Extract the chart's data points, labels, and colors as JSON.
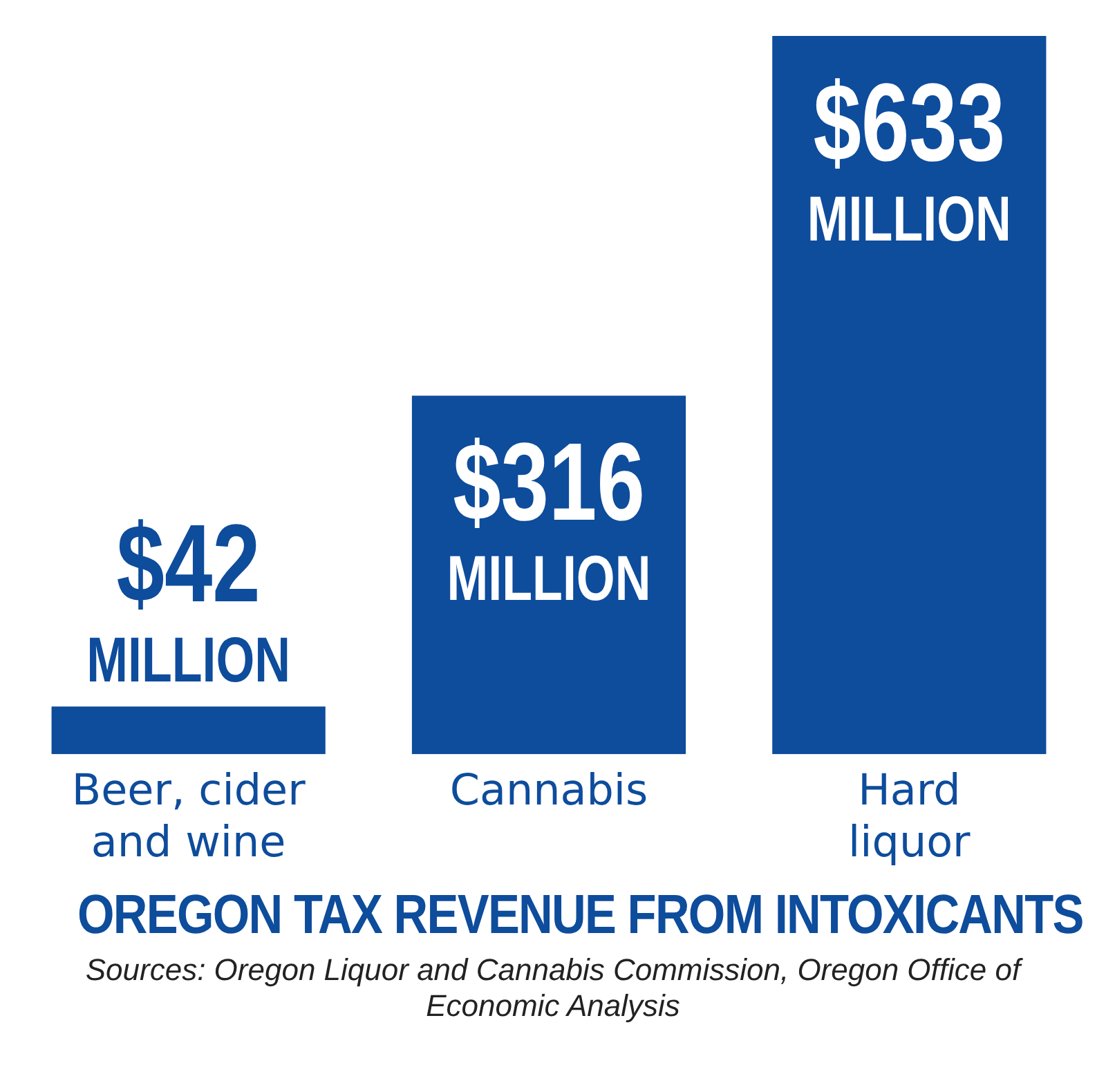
{
  "chart_data": {
    "type": "bar",
    "title": "OREGON TAX REVENUE FROM INTOXICANTS",
    "categories": [
      "Beer, cider and wine",
      "Cannabis",
      "Hard liquor"
    ],
    "values": [
      42,
      316,
      633
    ],
    "value_labels": [
      "$42 MILLION",
      "$316 MILLION",
      "$633 MILLION"
    ],
    "color": "#0e4c9c",
    "annotations": [
      "Sources: Oregon Liquor and Cannabis Commission, Oregon Office of Economic Analysis"
    ]
  }
}
